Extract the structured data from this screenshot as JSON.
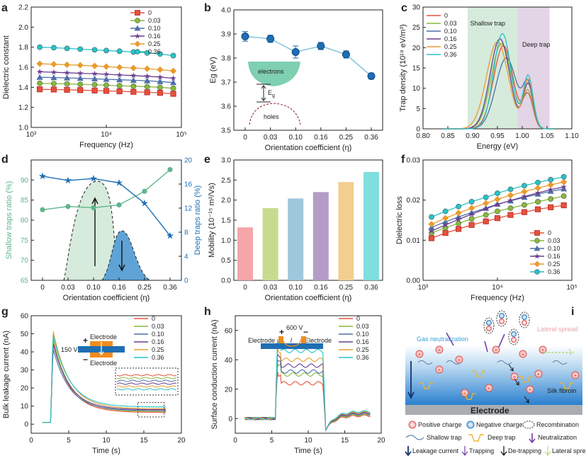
{
  "panel_labels": [
    "a",
    "b",
    "c",
    "d",
    "e",
    "f",
    "g",
    "h",
    "i"
  ],
  "colors": {
    "s0": "#e8513a",
    "s003": "#86b93a",
    "s010": "#4f6fa8",
    "s016": "#6a3d8f",
    "s025": "#e99b2e",
    "s036": "#25c3c9",
    "blue": "#1d6eb5",
    "green": "#5fb58a",
    "lightblue": "#7fc4d8",
    "shallow_bg": "#d6ebdc",
    "deep_bg": "#e3d4e6",
    "bars": [
      "#f4a6a9",
      "#c9d98e",
      "#9ec7dc",
      "#b59cc7",
      "#f2cf8f",
      "#7fdede"
    ],
    "electrode": "#1f6fb2",
    "orange": "#f08c1e"
  },
  "chart_data": [
    {
      "panel": "a",
      "type": "line",
      "xlabel": "Frequency (Hz)",
      "ylabel": "Dielectric constant",
      "xscale": "log",
      "xlim": [
        1000,
        100000
      ],
      "ylim": [
        1.0,
        2.2
      ],
      "x_ticks": [
        "10³",
        "10⁴",
        "10⁵"
      ],
      "y_ticks": [
        "1.0",
        "1.2",
        "1.4",
        "1.6",
        "1.8",
        "2.0",
        "2.2"
      ],
      "x": [
        1300,
        2000,
        3000,
        4500,
        7000,
        10000,
        15000,
        23000,
        35000,
        52000,
        78000
      ],
      "series": [
        {
          "name": "0",
          "values": [
            1.38,
            1.378,
            1.375,
            1.372,
            1.368,
            1.364,
            1.36,
            1.355,
            1.35,
            1.345,
            1.335
          ]
        },
        {
          "name": "0.03",
          "values": [
            1.44,
            1.437,
            1.434,
            1.43,
            1.426,
            1.421,
            1.416,
            1.411,
            1.406,
            1.4,
            1.39
          ]
        },
        {
          "name": "0.10",
          "values": [
            1.5,
            1.497,
            1.494,
            1.49,
            1.485,
            1.48,
            1.475,
            1.47,
            1.465,
            1.458,
            1.447
          ]
        },
        {
          "name": "0.16",
          "values": [
            1.555,
            1.55,
            1.545,
            1.54,
            1.535,
            1.53,
            1.523,
            1.517,
            1.51,
            1.502,
            1.49
          ]
        },
        {
          "name": "0.25",
          "values": [
            1.635,
            1.63,
            1.625,
            1.62,
            1.613,
            1.606,
            1.599,
            1.592,
            1.585,
            1.576,
            1.563
          ]
        },
        {
          "name": "0.36",
          "values": [
            1.8,
            1.795,
            1.788,
            1.781,
            1.774,
            1.767,
            1.76,
            1.752,
            1.743,
            1.732,
            1.716
          ]
        }
      ]
    },
    {
      "panel": "b",
      "type": "line",
      "xlabel": "Orientation coefficient (η)",
      "ylabel": "Eg (eV)",
      "categories": [
        "0",
        "0.03",
        "0.10",
        "0.16",
        "0.25",
        "0.36"
      ],
      "ylim": [
        3.5,
        4.0
      ],
      "y_ticks": [
        "3.5",
        "3.6",
        "3.7",
        "3.8",
        "3.9",
        "4.0"
      ],
      "values": [
        3.89,
        3.88,
        3.825,
        3.85,
        3.815,
        3.725
      ],
      "errors": [
        0.02,
        0.015,
        0.025,
        0.015,
        0.015,
        0.012
      ],
      "inset": {
        "electrons": "electrons",
        "holes": "holes",
        "gap": "E",
        "gap_sub": "g"
      }
    },
    {
      "panel": "c",
      "type": "line",
      "xlabel": "Energy (eV)",
      "ylabel": "Trap density (10¹⁹ eV/m³)",
      "xlim": [
        0.8,
        1.1
      ],
      "ylim": [
        0,
        30
      ],
      "x_ticks": [
        "0.80",
        "0.85",
        "0.90",
        "0.95",
        "1.00",
        "1.05",
        "1.10"
      ],
      "y_ticks": [
        "0",
        "5",
        "10",
        "15",
        "20",
        "25",
        "30"
      ],
      "shallow_range": [
        0.89,
        0.99
      ],
      "deep_range": [
        0.99,
        1.055
      ],
      "region_labels": {
        "shallow": "Shallow trap",
        "deep": "Deep trap"
      },
      "series": [
        {
          "name": "0",
          "peak": 0.962,
          "height": 20.5,
          "width": 0.028
        },
        {
          "name": "0.03",
          "peak": 0.958,
          "height": 21.0,
          "width": 0.029
        },
        {
          "name": "0.10",
          "peak": 0.968,
          "height": 17.5,
          "width": 0.03
        },
        {
          "name": "0.16",
          "peak": 0.955,
          "height": 22.2,
          "width": 0.028
        },
        {
          "name": "0.25",
          "peak": 0.95,
          "height": 21.5,
          "width": 0.031
        },
        {
          "name": "0.36",
          "peak": 0.96,
          "height": 23.5,
          "width": 0.025
        }
      ]
    },
    {
      "panel": "d",
      "type": "line",
      "xlabel": "Orientation coefficient (η)",
      "ylabel_left": "Shallow traps ratio (%)",
      "ylabel_right": "Deep traps ratio (%)",
      "categories": [
        "0",
        "0.03",
        "0.10",
        "0.16",
        "0.25",
        "0.36"
      ],
      "ylim_left": [
        65,
        95
      ],
      "ylim_right": [
        0,
        20
      ],
      "y_ticks_left": [
        "65",
        "70",
        "75",
        "80",
        "85",
        "90"
      ],
      "y_ticks_right": [
        "0",
        "4",
        "8",
        "12",
        "16",
        "20"
      ],
      "series": [
        {
          "name": "Shallow traps ratio",
          "axis": "left",
          "values": [
            82.6,
            83.4,
            83.1,
            83.8,
            87.2,
            92.6
          ]
        },
        {
          "name": "Deep traps ratio",
          "axis": "right",
          "values": [
            17.3,
            16.6,
            16.9,
            16.2,
            12.8,
            7.4
          ]
        }
      ]
    },
    {
      "panel": "e",
      "type": "bar",
      "xlabel": "Orientation coefficient (η)",
      "ylabel": "Mobility (10⁻¹⁵ m²/Vs)",
      "categories": [
        "0",
        "0.03",
        "0.10",
        "0.16",
        "0.25",
        "0.36"
      ],
      "values": [
        1.32,
        1.8,
        2.04,
        2.2,
        2.45,
        2.7
      ],
      "ylim": [
        0,
        3.0
      ],
      "y_ticks": [
        "0.0",
        "0.5",
        "1.0",
        "1.5",
        "2.0",
        "2.5",
        "3.0"
      ]
    },
    {
      "panel": "f",
      "type": "line",
      "xlabel": "Frequency (Hz)",
      "ylabel": "Dielectric loss",
      "xscale": "log",
      "xlim": [
        1000,
        100000
      ],
      "ylim": [
        0.0,
        0.03
      ],
      "x_ticks": [
        "10³",
        "10⁴",
        "10⁵"
      ],
      "y_ticks": [
        "0.00",
        "0.01",
        "0.02",
        "0.03"
      ],
      "x": [
        1300,
        2000,
        3000,
        4500,
        7000,
        10000,
        15000,
        23000,
        35000,
        52000,
        78000
      ],
      "series": [
        {
          "name": "0",
          "values": [
            0.0105,
            0.0118,
            0.0128,
            0.0138,
            0.0147,
            0.0155,
            0.0163,
            0.017,
            0.0177,
            0.0182,
            0.0187
          ]
        },
        {
          "name": "0.03",
          "values": [
            0.0118,
            0.0131,
            0.0142,
            0.0153,
            0.0163,
            0.0172,
            0.018,
            0.0188,
            0.0196,
            0.0203,
            0.021
          ]
        },
        {
          "name": "0.10",
          "values": [
            0.0132,
            0.0146,
            0.0158,
            0.0169,
            0.018,
            0.019,
            0.0198,
            0.0207,
            0.0215,
            0.0222,
            0.0228
          ]
        },
        {
          "name": "0.16",
          "values": [
            0.0123,
            0.0138,
            0.0152,
            0.0165,
            0.0178,
            0.0189,
            0.0199,
            0.0209,
            0.0218,
            0.0226,
            0.0233
          ]
        },
        {
          "name": "0.25",
          "values": [
            0.014,
            0.0155,
            0.0168,
            0.018,
            0.0192,
            0.0202,
            0.0212,
            0.0221,
            0.023,
            0.0238,
            0.0245
          ]
        },
        {
          "name": "0.36",
          "values": [
            0.0158,
            0.0172,
            0.0184,
            0.0196,
            0.0207,
            0.0217,
            0.0227,
            0.0236,
            0.0244,
            0.0251,
            0.0258
          ]
        }
      ]
    },
    {
      "panel": "g",
      "type": "line",
      "xlabel": "Time (s)",
      "ylabel": "Bulk leakage current (nA)",
      "xlim": [
        0,
        20
      ],
      "ylim": [
        -5,
        60
      ],
      "x_ticks": [
        "0",
        "5",
        "10",
        "15",
        "20"
      ],
      "y_ticks": [
        "0",
        "10",
        "20",
        "30",
        "40",
        "50",
        "60"
      ],
      "voltage": "150 V",
      "electrode_top": "Electrode",
      "electrode_bottom": "Electrode",
      "plus": "+",
      "minus": "−",
      "series": [
        {
          "name": "0",
          "peak": 46,
          "end": 6.5
        },
        {
          "name": "0.03",
          "peak": 48,
          "end": 7.0
        },
        {
          "name": "0.10",
          "peak": 42,
          "end": 7.5
        },
        {
          "name": "0.16",
          "peak": 45,
          "end": 8.0
        },
        {
          "name": "0.25",
          "peak": 52,
          "end": 8.5
        },
        {
          "name": "0.36",
          "peak": 50,
          "end": 9.5
        }
      ]
    },
    {
      "panel": "h",
      "type": "line",
      "xlabel": "Time (s)",
      "ylabel": "Surface conduction current (nA)",
      "xlim": [
        0,
        20
      ],
      "ylim": [
        -10,
        70
      ],
      "x_ticks": [
        "0",
        "5",
        "10",
        "15",
        "20"
      ],
      "y_ticks": [
        "0",
        "20",
        "40",
        "60"
      ],
      "voltage": "600 V",
      "electrode_left": "Electrode",
      "electrode_right": "Electrode",
      "plus": "+",
      "minus": "−",
      "gap_label": "l",
      "series": [
        {
          "name": "0",
          "plateau": 24
        },
        {
          "name": "0.03",
          "plateau": 30
        },
        {
          "name": "0.10",
          "plateau": 32
        },
        {
          "name": "0.16",
          "plateau": 36
        },
        {
          "name": "0.25",
          "plateau": 40
        },
        {
          "name": "0.36",
          "plateau": 46
        }
      ]
    }
  ],
  "schematic_i": {
    "gas_neutralization": "Gas neutralization",
    "lateral_spread": "Lateral spread",
    "silk_fibroin": "Silk fibroin",
    "electrode": "Electrode",
    "legend": {
      "positive": "Positive charge",
      "negative": "Negative charge",
      "recombination": "Recombination",
      "shallow": "Shallow trap",
      "deep": "Deep trap",
      "neutralization": "Neutralization",
      "leakage": "Leakage current",
      "trapping": "Trapping",
      "detrapping": "De-trapping",
      "lateral": "Lateral spread"
    }
  }
}
